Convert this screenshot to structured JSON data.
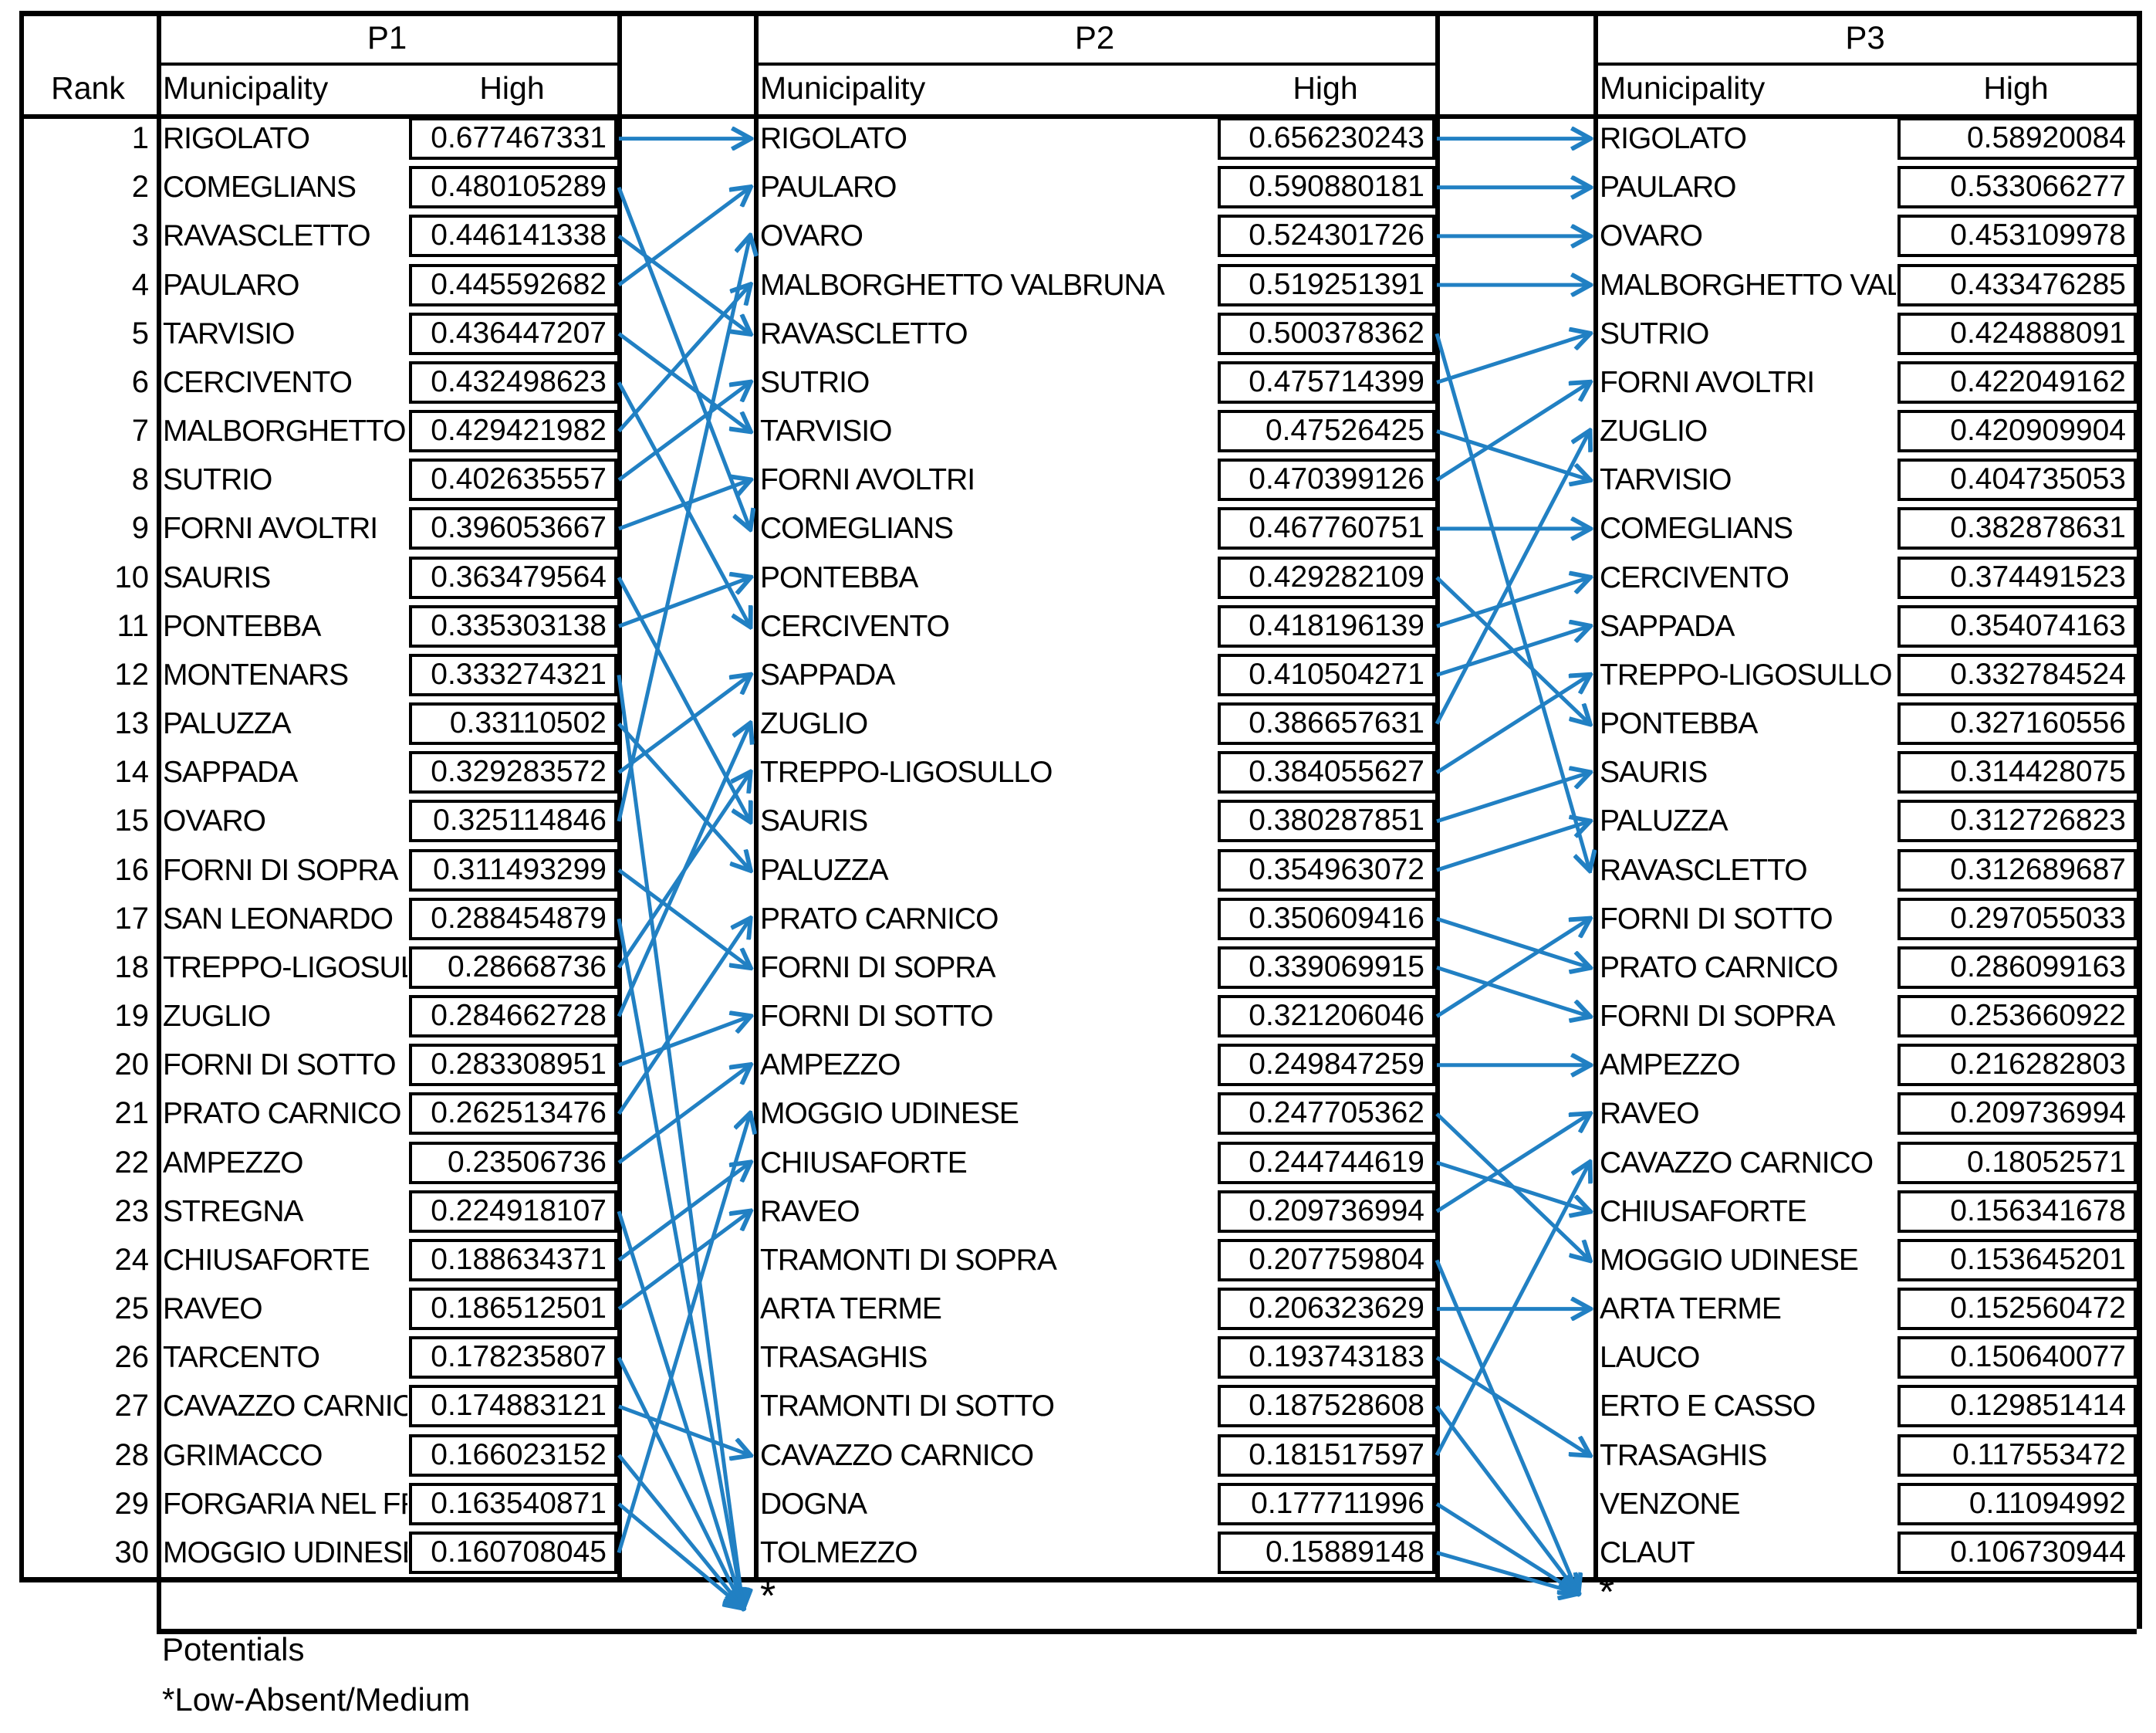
{
  "figure": {
    "type": "ranking-transition-table",
    "accent_color": "#2180C3",
    "grid_color": "#000000"
  },
  "headers": {
    "rank": "Rank",
    "municipality": "Municipality",
    "high": "High"
  },
  "footer": {
    "asterisk": "*",
    "potentials": "Potentials",
    "legend": "*Low-Absent/Medium"
  },
  "tables": [
    {
      "label": "P1",
      "rows": [
        {
          "rank": 1,
          "municipality": "RIGOLATO",
          "high": "0.677467331"
        },
        {
          "rank": 2,
          "municipality": "COMEGLIANS",
          "high": "0.480105289"
        },
        {
          "rank": 3,
          "municipality": "RAVASCLETTO",
          "high": "0.446141338"
        },
        {
          "rank": 4,
          "municipality": "PAULARO",
          "high": "0.445592682"
        },
        {
          "rank": 5,
          "municipality": "TARVISIO",
          "high": "0.436447207"
        },
        {
          "rank": 6,
          "municipality": "CERCIVENTO",
          "high": "0.432498623"
        },
        {
          "rank": 7,
          "municipality": "MALBORGHETTO VALBRUNA",
          "high": "0.429421982"
        },
        {
          "rank": 8,
          "municipality": "SUTRIO",
          "high": "0.402635557"
        },
        {
          "rank": 9,
          "municipality": "FORNI AVOLTRI",
          "high": "0.396053667"
        },
        {
          "rank": 10,
          "municipality": "SAURIS",
          "high": "0.363479564"
        },
        {
          "rank": 11,
          "municipality": "PONTEBBA",
          "high": "0.335303138"
        },
        {
          "rank": 12,
          "municipality": "MONTENARS",
          "high": "0.333274321"
        },
        {
          "rank": 13,
          "municipality": "PALUZZA",
          "high": "0.33110502"
        },
        {
          "rank": 14,
          "municipality": "SAPPADA",
          "high": "0.329283572"
        },
        {
          "rank": 15,
          "municipality": "OVARO",
          "high": "0.325114846"
        },
        {
          "rank": 16,
          "municipality": "FORNI DI SOPRA",
          "high": "0.311493299"
        },
        {
          "rank": 17,
          "municipality": "SAN LEONARDO",
          "high": "0.288454879"
        },
        {
          "rank": 18,
          "municipality": "TREPPO-LIGOSULLO",
          "high": "0.28668736"
        },
        {
          "rank": 19,
          "municipality": "ZUGLIO",
          "high": "0.284662728"
        },
        {
          "rank": 20,
          "municipality": "FORNI DI SOTTO",
          "high": "0.283308951"
        },
        {
          "rank": 21,
          "municipality": "PRATO CARNICO",
          "high": "0.262513476"
        },
        {
          "rank": 22,
          "municipality": "AMPEZZO",
          "high": "0.23506736"
        },
        {
          "rank": 23,
          "municipality": "STREGNA",
          "high": "0.224918107"
        },
        {
          "rank": 24,
          "municipality": "CHIUSAFORTE",
          "high": "0.188634371"
        },
        {
          "rank": 25,
          "municipality": "RAVEO",
          "high": "0.186512501"
        },
        {
          "rank": 26,
          "municipality": "TARCENTO",
          "high": "0.178235807"
        },
        {
          "rank": 27,
          "municipality": "CAVAZZO CARNICO",
          "high": "0.174883121"
        },
        {
          "rank": 28,
          "municipality": "GRIMACCO",
          "high": "0.166023152"
        },
        {
          "rank": 29,
          "municipality": "FORGARIA NEL FRIULI",
          "high": "0.163540871"
        },
        {
          "rank": 30,
          "municipality": "MOGGIO UDINESE",
          "high": "0.160708045"
        }
      ]
    },
    {
      "label": "P2",
      "rows": [
        {
          "rank": 1,
          "municipality": "RIGOLATO",
          "high": "0.656230243"
        },
        {
          "rank": 2,
          "municipality": "PAULARO",
          "high": "0.590880181"
        },
        {
          "rank": 3,
          "municipality": "OVARO",
          "high": "0.524301726"
        },
        {
          "rank": 4,
          "municipality": "MALBORGHETTO VALBRUNA",
          "high": "0.519251391"
        },
        {
          "rank": 5,
          "municipality": "RAVASCLETTO",
          "high": "0.500378362"
        },
        {
          "rank": 6,
          "municipality": "SUTRIO",
          "high": "0.475714399"
        },
        {
          "rank": 7,
          "municipality": "TARVISIO",
          "high": "0.47526425"
        },
        {
          "rank": 8,
          "municipality": "FORNI AVOLTRI",
          "high": "0.470399126"
        },
        {
          "rank": 9,
          "municipality": "COMEGLIANS",
          "high": "0.467760751"
        },
        {
          "rank": 10,
          "municipality": "PONTEBBA",
          "high": "0.429282109"
        },
        {
          "rank": 11,
          "municipality": "CERCIVENTO",
          "high": "0.418196139"
        },
        {
          "rank": 12,
          "municipality": "SAPPADA",
          "high": "0.410504271"
        },
        {
          "rank": 13,
          "municipality": "ZUGLIO",
          "high": "0.386657631"
        },
        {
          "rank": 14,
          "municipality": "TREPPO-LIGOSULLO",
          "high": "0.384055627"
        },
        {
          "rank": 15,
          "municipality": "SAURIS",
          "high": "0.380287851"
        },
        {
          "rank": 16,
          "municipality": "PALUZZA",
          "high": "0.354963072"
        },
        {
          "rank": 17,
          "municipality": "PRATO CARNICO",
          "high": "0.350609416"
        },
        {
          "rank": 18,
          "municipality": "FORNI DI SOPRA",
          "high": "0.339069915"
        },
        {
          "rank": 19,
          "municipality": "FORNI DI SOTTO",
          "high": "0.321206046"
        },
        {
          "rank": 20,
          "municipality": "AMPEZZO",
          "high": "0.249847259"
        },
        {
          "rank": 21,
          "municipality": "MOGGIO UDINESE",
          "high": "0.247705362"
        },
        {
          "rank": 22,
          "municipality": "CHIUSAFORTE",
          "high": "0.244744619"
        },
        {
          "rank": 23,
          "municipality": "RAVEO",
          "high": "0.209736994"
        },
        {
          "rank": 24,
          "municipality": "TRAMONTI DI SOPRA",
          "high": "0.207759804"
        },
        {
          "rank": 25,
          "municipality": "ARTA TERME",
          "high": "0.206323629"
        },
        {
          "rank": 26,
          "municipality": "TRASAGHIS",
          "high": "0.193743183"
        },
        {
          "rank": 27,
          "municipality": "TRAMONTI DI SOTTO",
          "high": "0.187528608"
        },
        {
          "rank": 28,
          "municipality": "CAVAZZO CARNICO",
          "high": "0.181517597"
        },
        {
          "rank": 29,
          "municipality": "DOGNA",
          "high": "0.177711996"
        },
        {
          "rank": 30,
          "municipality": "TOLMEZZO",
          "high": "0.15889148"
        }
      ]
    },
    {
      "label": "P3",
      "rows": [
        {
          "rank": 1,
          "municipality": "RIGOLATO",
          "high": "0.58920084"
        },
        {
          "rank": 2,
          "municipality": "PAULARO",
          "high": "0.533066277"
        },
        {
          "rank": 3,
          "municipality": "OVARO",
          "high": "0.453109978"
        },
        {
          "rank": 4,
          "municipality": "MALBORGHETTO VALBRUNA",
          "high": "0.433476285"
        },
        {
          "rank": 5,
          "municipality": "SUTRIO",
          "high": "0.424888091"
        },
        {
          "rank": 6,
          "municipality": "FORNI AVOLTRI",
          "high": "0.422049162"
        },
        {
          "rank": 7,
          "municipality": "ZUGLIO",
          "high": "0.420909904"
        },
        {
          "rank": 8,
          "municipality": "TARVISIO",
          "high": "0.404735053"
        },
        {
          "rank": 9,
          "municipality": "COMEGLIANS",
          "high": "0.382878631"
        },
        {
          "rank": 10,
          "municipality": "CERCIVENTO",
          "high": "0.374491523"
        },
        {
          "rank": 11,
          "municipality": "SAPPADA",
          "high": "0.354074163"
        },
        {
          "rank": 12,
          "municipality": "TREPPO-LIGOSULLO",
          "high": "0.332784524"
        },
        {
          "rank": 13,
          "municipality": "PONTEBBA",
          "high": "0.327160556"
        },
        {
          "rank": 14,
          "municipality": "SAURIS",
          "high": "0.314428075"
        },
        {
          "rank": 15,
          "municipality": "PALUZZA",
          "high": "0.312726823"
        },
        {
          "rank": 16,
          "municipality": "RAVASCLETTO",
          "high": "0.312689687"
        },
        {
          "rank": 17,
          "municipality": "FORNI DI SOTTO",
          "high": "0.297055033"
        },
        {
          "rank": 18,
          "municipality": "PRATO CARNICO",
          "high": "0.286099163"
        },
        {
          "rank": 19,
          "municipality": "FORNI DI SOPRA",
          "high": "0.253660922"
        },
        {
          "rank": 20,
          "municipality": "AMPEZZO",
          "high": "0.216282803"
        },
        {
          "rank": 21,
          "municipality": "RAVEO",
          "high": "0.209736994"
        },
        {
          "rank": 22,
          "municipality": "CAVAZZO CARNICO",
          "high": "0.18052571"
        },
        {
          "rank": 23,
          "municipality": "CHIUSAFORTE",
          "high": "0.156341678"
        },
        {
          "rank": 24,
          "municipality": "MOGGIO UDINESE",
          "high": "0.153645201"
        },
        {
          "rank": 25,
          "municipality": "ARTA TERME",
          "high": "0.152560472"
        },
        {
          "rank": 26,
          "municipality": "LAUCO",
          "high": "0.150640077"
        },
        {
          "rank": 27,
          "municipality": "ERTO E CASSO",
          "high": "0.129851414"
        },
        {
          "rank": 28,
          "municipality": "TRASAGHIS",
          "high": "0.117553472"
        },
        {
          "rank": 29,
          "municipality": "VENZONE",
          "high": "0.11094992"
        },
        {
          "rank": 30,
          "municipality": "CLAUT",
          "high": "0.106730944"
        }
      ]
    }
  ],
  "transitions": {
    "p1_to_p2": [
      {
        "from": 1,
        "to": 1
      },
      {
        "from": 2,
        "to": 9
      },
      {
        "from": 3,
        "to": 5
      },
      {
        "from": 4,
        "to": 2
      },
      {
        "from": 5,
        "to": 7
      },
      {
        "from": 6,
        "to": 11
      },
      {
        "from": 7,
        "to": 4
      },
      {
        "from": 8,
        "to": 6
      },
      {
        "from": 9,
        "to": 8
      },
      {
        "from": 10,
        "to": 15
      },
      {
        "from": 11,
        "to": 10
      },
      {
        "from": 12,
        "to": "star"
      },
      {
        "from": 13,
        "to": 16
      },
      {
        "from": 14,
        "to": 12
      },
      {
        "from": 15,
        "to": 3
      },
      {
        "from": 16,
        "to": 18
      },
      {
        "from": 17,
        "to": "star"
      },
      {
        "from": 18,
        "to": 14
      },
      {
        "from": 19,
        "to": 13
      },
      {
        "from": 20,
        "to": 19
      },
      {
        "from": 21,
        "to": 17
      },
      {
        "from": 22,
        "to": 20
      },
      {
        "from": 23,
        "to": "star"
      },
      {
        "from": 24,
        "to": 22
      },
      {
        "from": 25,
        "to": 23
      },
      {
        "from": 26,
        "to": "star"
      },
      {
        "from": 27,
        "to": 28
      },
      {
        "from": 28,
        "to": "star"
      },
      {
        "from": 29,
        "to": "star"
      },
      {
        "from": 30,
        "to": 21
      }
    ],
    "p2_to_p3": [
      {
        "from": 1,
        "to": 1
      },
      {
        "from": 2,
        "to": 2
      },
      {
        "from": 3,
        "to": 3
      },
      {
        "from": 4,
        "to": 4
      },
      {
        "from": 5,
        "to": 16
      },
      {
        "from": 6,
        "to": 5
      },
      {
        "from": 7,
        "to": 8
      },
      {
        "from": 8,
        "to": 6
      },
      {
        "from": 9,
        "to": 9
      },
      {
        "from": 10,
        "to": 13
      },
      {
        "from": 11,
        "to": 10
      },
      {
        "from": 12,
        "to": 11
      },
      {
        "from": 13,
        "to": 7
      },
      {
        "from": 14,
        "to": 12
      },
      {
        "from": 15,
        "to": 14
      },
      {
        "from": 16,
        "to": 15
      },
      {
        "from": 17,
        "to": 18
      },
      {
        "from": 18,
        "to": 19
      },
      {
        "from": 19,
        "to": 17
      },
      {
        "from": 20,
        "to": 20
      },
      {
        "from": 21,
        "to": 24
      },
      {
        "from": 22,
        "to": 23
      },
      {
        "from": 23,
        "to": 21
      },
      {
        "from": 24,
        "to": "star"
      },
      {
        "from": 25,
        "to": 25
      },
      {
        "from": 26,
        "to": 28
      },
      {
        "from": 27,
        "to": "star"
      },
      {
        "from": 28,
        "to": 22
      },
      {
        "from": 29,
        "to": "star"
      },
      {
        "from": 30,
        "to": "star"
      }
    ]
  }
}
